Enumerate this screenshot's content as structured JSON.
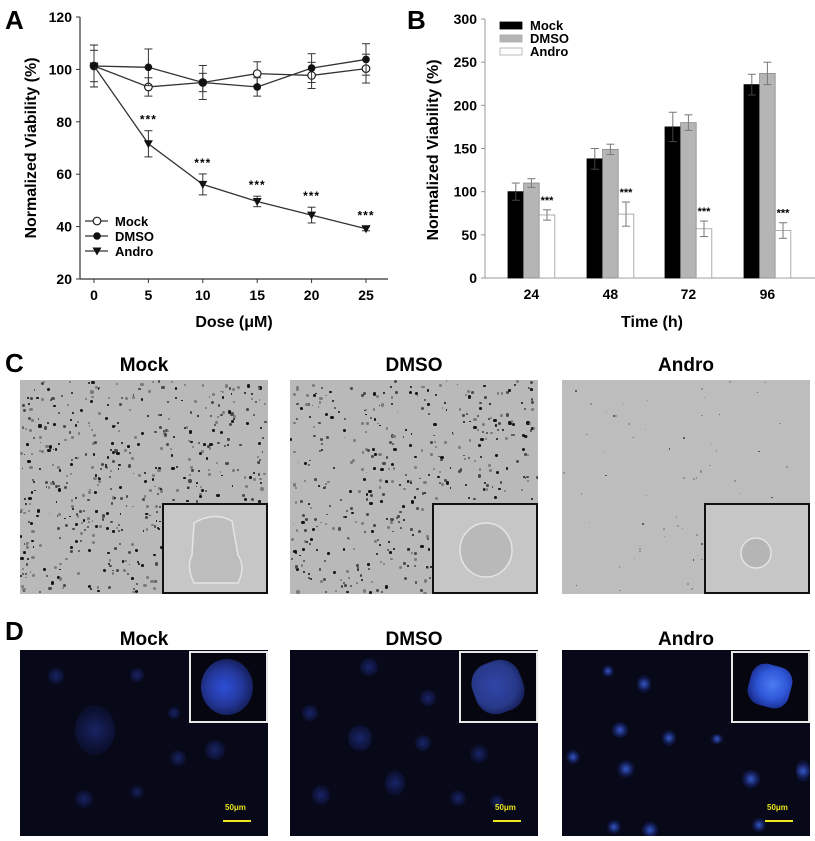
{
  "panels": {
    "A": {
      "letter": "A"
    },
    "B": {
      "letter": "B"
    },
    "C": {
      "letter": "C",
      "titles": [
        "Mock",
        "DMSO",
        "Andro"
      ]
    },
    "D": {
      "letter": "D",
      "titles": [
        "Mock",
        "DMSO",
        "Andro"
      ],
      "scale_bar_label": "50μm"
    }
  },
  "colors": {
    "mock_bar": "#000000",
    "dmso_bar": "#b5b5b5",
    "andro_bar": "#ffffff",
    "axis": "#555555",
    "brightfield_bg": "#b9b9b9",
    "fluor_bg": "#070818",
    "fluor_blue": "#2a4fd0",
    "scale_bar": "#f0e81c"
  },
  "chart_data": [
    {
      "id": "A",
      "type": "line",
      "title": "",
      "xlabel": "Dose (μM)",
      "ylabel": "Normalized Viability (%)",
      "x": [
        0,
        5,
        10,
        15,
        20,
        25
      ],
      "xticks": [
        "0",
        "5",
        "10",
        "15",
        "20",
        "25"
      ],
      "ylim": [
        20,
        120
      ],
      "yticks": [
        "20",
        "40",
        "60",
        "80",
        "100",
        "120"
      ],
      "grid": false,
      "legend_position": "lower left",
      "series": [
        {
          "name": "Mock",
          "marker": "open-circle",
          "values": [
            101.3,
            93.3,
            95.0,
            98.4,
            97.7,
            100.3
          ],
          "errors": [
            8,
            3.5,
            6.5,
            4.5,
            5,
            5.5
          ]
        },
        {
          "name": "DMSO",
          "marker": "filled-circle",
          "values": [
            101.3,
            100.8,
            95.0,
            93.3,
            100.5,
            103.8
          ],
          "errors": [
            6,
            7,
            3.5,
            3.5,
            5.5,
            6
          ]
        },
        {
          "name": "Andro",
          "marker": "filled-triangle-down",
          "values": [
            101.3,
            71.6,
            56.1,
            49.6,
            44.4,
            39.2
          ],
          "errors": [
            8,
            5,
            4,
            2,
            3,
            0.8
          ]
        }
      ],
      "annotations": [
        {
          "x": 5,
          "text": "***"
        },
        {
          "x": 10,
          "text": "***"
        },
        {
          "x": 15,
          "text": "***"
        },
        {
          "x": 20,
          "text": "***"
        },
        {
          "x": 25,
          "text": "***"
        }
      ]
    },
    {
      "id": "B",
      "type": "bar",
      "title": "",
      "xlabel": "Time (h)",
      "ylabel": "Normalized Viability (%)",
      "categories": [
        "24",
        "48",
        "72",
        "96"
      ],
      "ylim": [
        0,
        300
      ],
      "yticks": [
        "0",
        "50",
        "100",
        "150",
        "200",
        "250",
        "300"
      ],
      "grid": false,
      "legend_position": "upper left",
      "series": [
        {
          "name": "Mock",
          "values": [
            100,
            138,
            175,
            224
          ],
          "errors": [
            10,
            12,
            17,
            12
          ]
        },
        {
          "name": "DMSO",
          "values": [
            110,
            149,
            180,
            237
          ],
          "errors": [
            5,
            6,
            9,
            13
          ]
        },
        {
          "name": "Andro",
          "values": [
            73,
            74,
            57,
            55
          ],
          "errors": [
            6,
            14,
            9,
            9
          ]
        }
      ],
      "annotations": [
        {
          "category": "24",
          "series": "Andro",
          "text": "***"
        },
        {
          "category": "48",
          "series": "Andro",
          "text": "***"
        },
        {
          "category": "72",
          "series": "Andro",
          "text": "***"
        },
        {
          "category": "96",
          "series": "Andro",
          "text": "***"
        }
      ]
    }
  ]
}
